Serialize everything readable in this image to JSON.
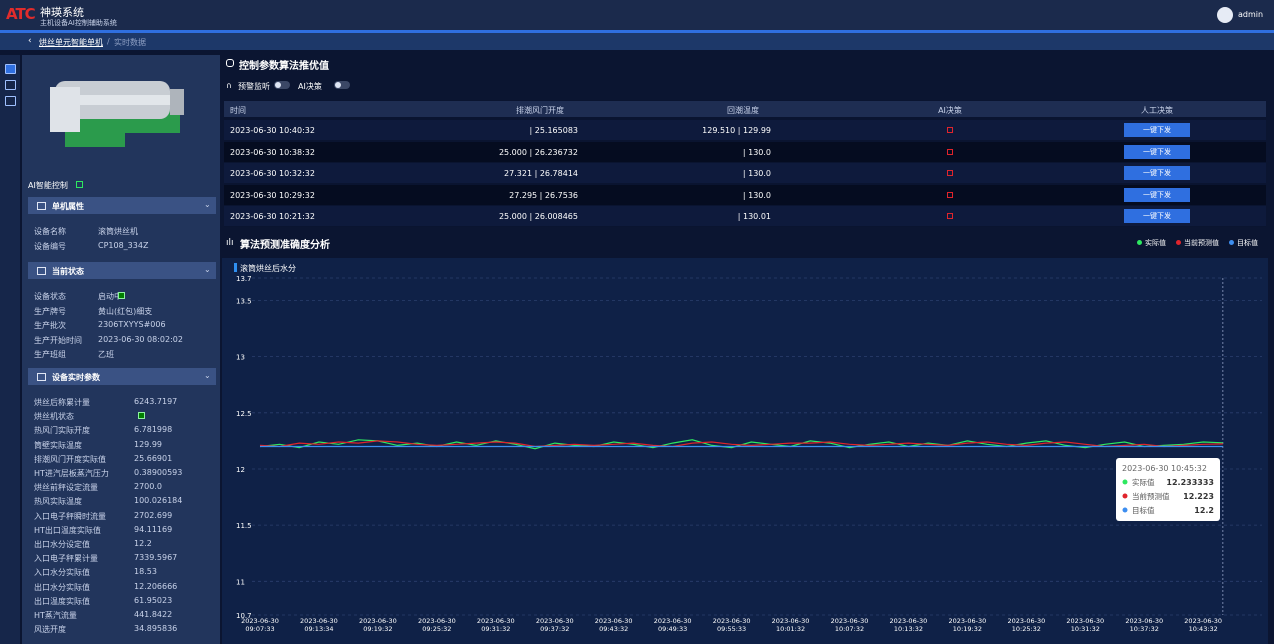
{
  "header": {
    "logo": "ATC",
    "title": "神瑛系统",
    "subtitle": "主机设备AI控制辅助系统",
    "user": "admin"
  },
  "breadcrumb": {
    "parent": "烘丝单元智能单机",
    "current": "实时数据"
  },
  "panel": {
    "ai_label": "AI智能控制",
    "sections": [
      {
        "title": "单机属性",
        "rows": [
          {
            "label": "设备名称",
            "value": "滚筒烘丝机"
          },
          {
            "label": "设备编号",
            "value": "CP108_334Z"
          }
        ]
      },
      {
        "title": "当前状态",
        "rows": [
          {
            "label": "设备状态",
            "value": "启动中",
            "indicator": "green"
          },
          {
            "label": "生产牌号",
            "value": "黄山(红包)细支"
          },
          {
            "label": "生产批次",
            "value": "2306TXYYS#006"
          },
          {
            "label": "生产开始时间",
            "value": "2023-06-30 08:02:02"
          },
          {
            "label": "生产班组",
            "value": "乙班"
          }
        ]
      },
      {
        "title": "设备实时参数",
        "rows": [
          {
            "label": "烘丝后称累计量",
            "value": "6243.7197"
          },
          {
            "label": "烘丝机状态",
            "indicator": "green"
          },
          {
            "label": "热风门实际开度",
            "value": "6.781998"
          },
          {
            "label": "筒壁实际温度",
            "value": "129.99"
          },
          {
            "label": "排潮风门开度实际值",
            "value": "25.66901"
          },
          {
            "label": "HT进汽层板蒸汽压力",
            "value": "0.38900593"
          },
          {
            "label": "烘丝前秤设定流量",
            "value": "2700.0"
          },
          {
            "label": "热风实际温度",
            "value": "100.026184"
          },
          {
            "label": "入口电子秤瞬时流量",
            "value": "2702.699"
          },
          {
            "label": "HT出口温度实际值",
            "value": "94.11169"
          },
          {
            "label": "出口水分设定值",
            "value": "12.2"
          },
          {
            "label": "入口电子秤累计量",
            "value": "7339.5967"
          },
          {
            "label": "入口水分实际值",
            "value": "18.53"
          },
          {
            "label": "出口水分实际值",
            "value": "12.206666"
          },
          {
            "label": "出口温度实际值",
            "value": "61.95023"
          },
          {
            "label": "HT蒸汽流量",
            "value": "441.8422"
          },
          {
            "label": "风选开度",
            "value": "34.895836"
          }
        ]
      }
    ]
  },
  "algo": {
    "title": "控制参数算法推优值",
    "toggles": [
      "预警监听",
      "AI决策"
    ],
    "table": {
      "columns": [
        "时间",
        "排潮风门开度",
        "回潮温度",
        "AI决策",
        "人工决策"
      ],
      "action": "一键下发",
      "rows": [
        [
          "2023-06-30 10:40:32",
          "| 25.165083",
          "129.510 | 129.99"
        ],
        [
          "2023-06-30 10:38:32",
          "25.000 | 26.236732",
          "| 130.0"
        ],
        [
          "2023-06-30 10:32:32",
          "27.321 | 26.78414",
          "| 130.0"
        ],
        [
          "2023-06-30 10:29:32",
          "27.295 | 26.7536",
          "| 130.0"
        ],
        [
          "2023-06-30 10:21:32",
          "25.000 | 26.008465",
          "| 130.01"
        ]
      ]
    }
  },
  "chart_data": {
    "type": "line",
    "title": "算法预测准确度分析",
    "subtitle": "滚筒烘丝后水分",
    "categories": [
      "2023-06-30 09:07:33",
      null,
      null,
      "2023-06-30 09:13:34",
      null,
      null,
      "2023-06-30 09:19:32",
      null,
      null,
      "2023-06-30 09:25:32",
      null,
      null,
      "2023-06-30 09:31:32",
      null,
      null,
      "2023-06-30 09:37:32",
      null,
      null,
      "2023-06-30 09:43:32",
      null,
      null,
      "2023-06-30 09:49:33",
      null,
      null,
      "2023-06-30 09:55:33",
      null,
      null,
      "2023-06-30 10:01:32",
      null,
      null,
      "2023-06-30 10:07:32",
      null,
      null,
      "2023-06-30 10:13:32",
      null,
      null,
      "2023-06-30 10:19:32",
      null,
      null,
      "2023-06-30 10:25:32",
      null,
      null,
      "2023-06-30 10:31:32",
      null,
      null,
      "2023-06-30 10:37:32",
      null,
      null,
      "2023-06-30 10:43:32",
      null
    ],
    "series": [
      {
        "name": "实际值",
        "color": "#2ee860",
        "values": [
          12.2,
          12.22,
          12.19,
          12.24,
          12.22,
          12.26,
          12.25,
          12.21,
          12.23,
          12.2,
          12.24,
          12.21,
          12.25,
          12.22,
          12.18,
          12.23,
          12.21,
          12.2,
          12.24,
          12.22,
          12.19,
          12.23,
          12.26,
          12.21,
          12.19,
          12.24,
          12.22,
          12.2,
          12.25,
          12.23,
          12.19,
          12.22,
          12.24,
          12.2,
          12.23,
          12.21,
          12.25,
          12.22,
          12.2,
          12.23,
          12.25,
          12.21,
          12.19,
          12.22,
          12.24,
          12.2,
          12.21,
          12.22,
          12.24,
          12.233333
        ]
      },
      {
        "name": "当前预测值",
        "color": "#e0242c",
        "values": [
          12.21,
          12.2,
          12.23,
          12.22,
          12.24,
          12.23,
          12.25,
          12.24,
          12.22,
          12.21,
          12.22,
          12.23,
          12.24,
          12.23,
          12.2,
          12.21,
          12.22,
          12.21,
          12.22,
          12.23,
          12.21,
          12.2,
          12.23,
          12.24,
          12.22,
          12.21,
          12.22,
          12.23,
          12.23,
          12.24,
          12.22,
          12.21,
          12.22,
          12.23,
          12.22,
          12.21,
          12.23,
          12.24,
          12.22,
          12.21,
          12.23,
          12.24,
          12.22,
          12.2,
          12.21,
          12.22,
          12.2,
          12.21,
          12.22,
          12.223
        ]
      },
      {
        "name": "目标值",
        "color": "#3d8ef0",
        "values": [
          12.2,
          12.2,
          12.2,
          12.2,
          12.2,
          12.2,
          12.2,
          12.2,
          12.2,
          12.2,
          12.2,
          12.2,
          12.2,
          12.2,
          12.2,
          12.2,
          12.2,
          12.2,
          12.2,
          12.2,
          12.2,
          12.2,
          12.2,
          12.2,
          12.2,
          12.2,
          12.2,
          12.2,
          12.2,
          12.2,
          12.2,
          12.2,
          12.2,
          12.2,
          12.2,
          12.2,
          12.2,
          12.2,
          12.2,
          12.2,
          12.2,
          12.2,
          12.2,
          12.2,
          12.2,
          12.2,
          12.2,
          12.2,
          12.2,
          12.2
        ]
      }
    ],
    "ylim": [
      10.7,
      13.7
    ],
    "yticks": [
      10.7,
      11,
      11.5,
      12,
      12.5,
      13,
      13.5,
      13.7
    ],
    "grid": true,
    "tooltip": {
      "x": "2023-06-30 10:45:32"
    }
  }
}
